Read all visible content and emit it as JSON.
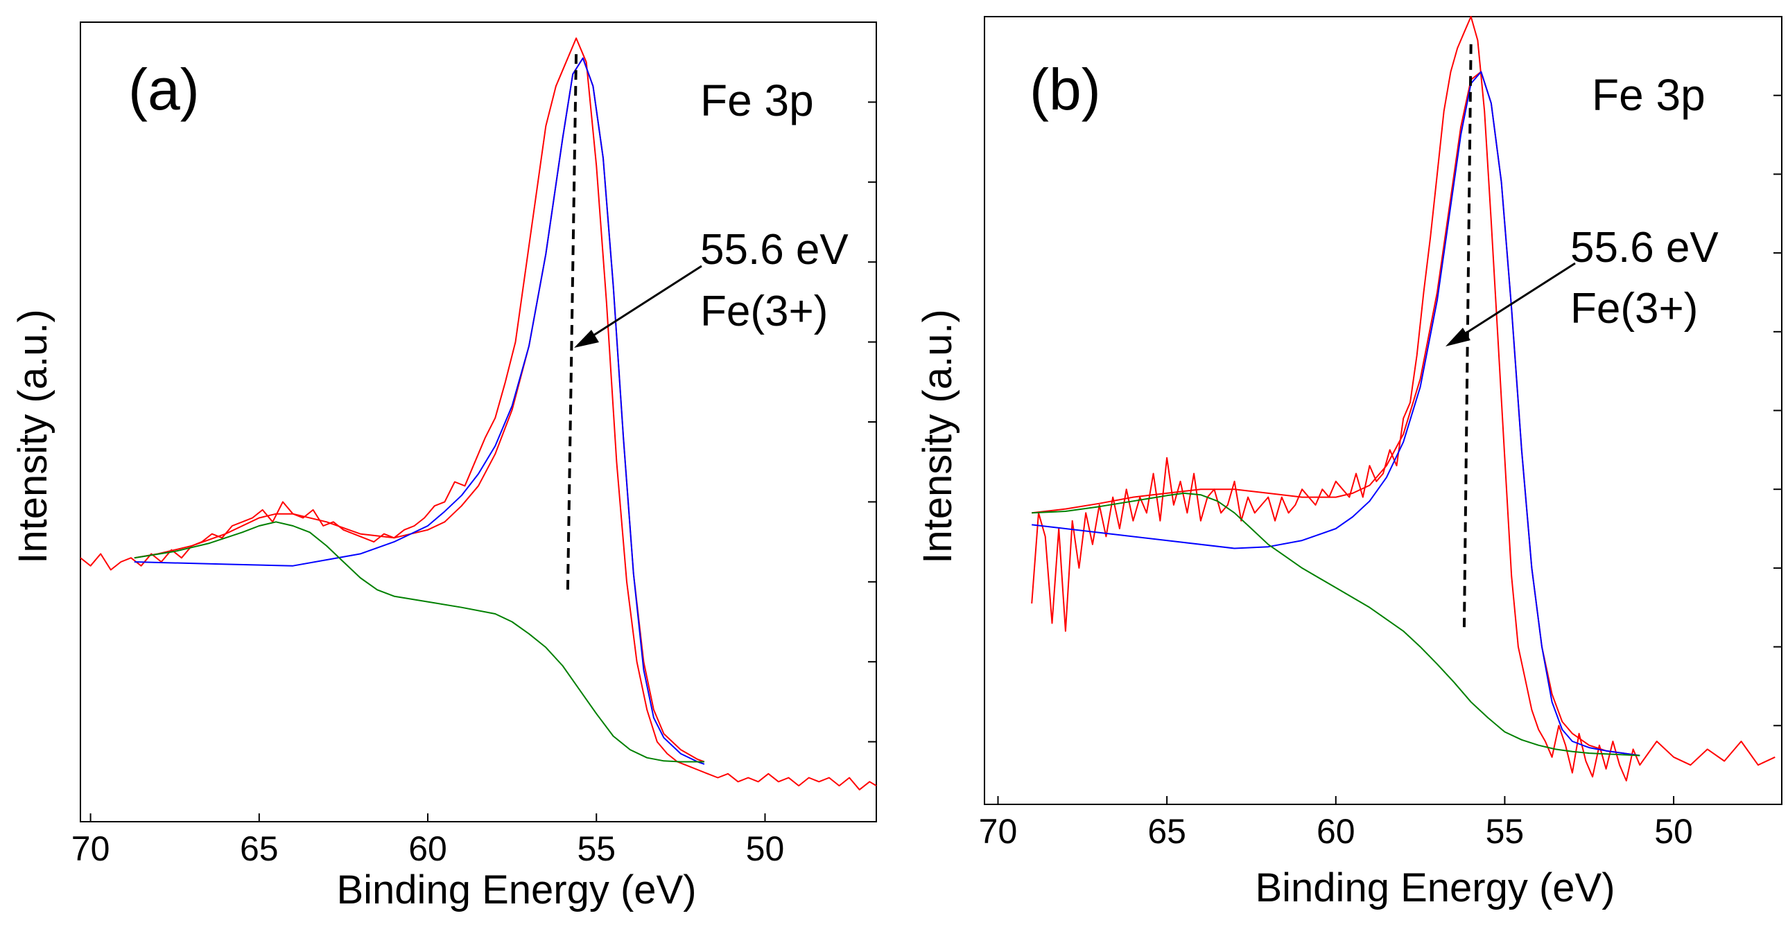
{
  "colors": {
    "raw": "#ff0000",
    "envelope": "#ff0000",
    "fit": "#0000ff",
    "satellite": "#008000",
    "axis": "#000000"
  },
  "chart_data": [
    {
      "type": "line",
      "panel_label": "(a)",
      "title": "Fe 3p",
      "xlabel": "Binding Energy (eV)",
      "ylabel": "Intensity (a.u.)",
      "xlim": [
        70.3,
        46.7
      ],
      "ylim": [
        0,
        10
      ],
      "x_ticks": [
        70,
        65,
        60,
        55,
        50
      ],
      "x_tick_labels": [
        "70",
        "65",
        "60",
        "55",
        "50"
      ],
      "y_ticks": [
        1,
        2,
        3,
        4,
        5,
        6,
        7,
        8,
        9
      ],
      "annotation": {
        "lines": [
          "55.6 eV",
          "Fe(3+)"
        ],
        "peak_position": 55.6
      },
      "peak_marker": {
        "x_top": 55.6,
        "x_bottom": 55.85,
        "y_top": 9.6,
        "y_bottom": 2.9
      },
      "series": [
        {
          "name": "raw spectrum",
          "color_key": "raw",
          "width": 2,
          "x": [
            70.3,
            70.0,
            69.7,
            69.4,
            69.1,
            68.8,
            68.5,
            68.2,
            67.9,
            67.6,
            67.3,
            67.0,
            66.7,
            66.4,
            66.1,
            65.8,
            65.5,
            65.2,
            64.9,
            64.6,
            64.3,
            64.0,
            63.7,
            63.4,
            63.1,
            62.8,
            62.5,
            62.2,
            61.9,
            61.6,
            61.3,
            61.0,
            60.7,
            60.4,
            60.1,
            59.8,
            59.5,
            59.2,
            58.9,
            58.6,
            58.3,
            58.0,
            57.7,
            57.4,
            57.1,
            56.8,
            56.5,
            56.2,
            55.9,
            55.6,
            55.3,
            55.0,
            54.7,
            54.4,
            54.1,
            53.8,
            53.5,
            53.2,
            52.9,
            52.6,
            52.3,
            52.0,
            51.7,
            51.4,
            51.1,
            50.8,
            50.5,
            50.2,
            49.9,
            49.6,
            49.3,
            49.0,
            48.7,
            48.4,
            48.1,
            47.8,
            47.5,
            47.2,
            46.9,
            46.7
          ],
          "y": [
            3.3,
            3.2,
            3.35,
            3.15,
            3.25,
            3.3,
            3.2,
            3.35,
            3.25,
            3.4,
            3.3,
            3.45,
            3.5,
            3.6,
            3.55,
            3.7,
            3.75,
            3.8,
            3.9,
            3.75,
            4.0,
            3.85,
            3.8,
            3.9,
            3.7,
            3.75,
            3.65,
            3.6,
            3.55,
            3.5,
            3.6,
            3.55,
            3.65,
            3.7,
            3.8,
            3.95,
            4.0,
            4.25,
            4.2,
            4.5,
            4.8,
            5.05,
            5.5,
            6.0,
            6.9,
            7.8,
            8.7,
            9.2,
            9.5,
            9.8,
            9.5,
            8.2,
            6.5,
            4.5,
            3.0,
            2.0,
            1.4,
            1.0,
            0.85,
            0.75,
            0.7,
            0.65,
            0.6,
            0.55,
            0.6,
            0.5,
            0.55,
            0.5,
            0.6,
            0.5,
            0.55,
            0.45,
            0.55,
            0.5,
            0.55,
            0.45,
            0.55,
            0.4,
            0.5,
            0.45
          ]
        },
        {
          "name": "fit envelope",
          "color_key": "envelope",
          "width": 2,
          "x": [
            68.7,
            68.0,
            67.0,
            66.0,
            65.0,
            64.5,
            64.0,
            63.0,
            62.0,
            61.0,
            60.0,
            59.5,
            59.0,
            58.5,
            58.0,
            57.5,
            57.0,
            56.5,
            56.0,
            55.7,
            55.4,
            55.1,
            54.8,
            54.5,
            54.2,
            53.9,
            53.6,
            53.3,
            53.0,
            52.5,
            52.0,
            51.8
          ],
          "y": [
            3.3,
            3.35,
            3.45,
            3.6,
            3.8,
            3.85,
            3.85,
            3.75,
            3.6,
            3.55,
            3.65,
            3.75,
            3.95,
            4.2,
            4.6,
            5.15,
            5.95,
            7.1,
            8.55,
            9.35,
            9.55,
            9.2,
            8.3,
            6.7,
            4.8,
            3.1,
            2.0,
            1.4,
            1.1,
            0.9,
            0.78,
            0.75
          ]
        },
        {
          "name": "Fe(3+) fit",
          "color_key": "fit",
          "width": 2,
          "x": [
            68.7,
            66.0,
            64.0,
            62.0,
            61.0,
            60.0,
            59.5,
            59.0,
            58.5,
            58.0,
            57.5,
            57.0,
            56.5,
            56.0,
            55.7,
            55.4,
            55.1,
            54.8,
            54.5,
            54.2,
            53.9,
            53.6,
            53.3,
            53.0,
            52.5,
            52.0,
            51.8
          ],
          "y": [
            3.25,
            3.22,
            3.2,
            3.35,
            3.5,
            3.7,
            3.88,
            4.08,
            4.35,
            4.7,
            5.2,
            5.95,
            7.1,
            8.55,
            9.35,
            9.55,
            9.2,
            8.3,
            6.7,
            4.8,
            3.1,
            1.9,
            1.3,
            1.05,
            0.85,
            0.75,
            0.72
          ]
        },
        {
          "name": "satellite / background",
          "color_key": "satellite",
          "width": 2,
          "x": [
            68.7,
            67.5,
            66.5,
            65.5,
            65.0,
            64.5,
            64.0,
            63.5,
            63.0,
            62.5,
            62.0,
            61.5,
            61.0,
            60.0,
            59.0,
            58.0,
            57.5,
            57.0,
            56.5,
            56.0,
            55.5,
            55.0,
            54.5,
            54.0,
            53.5,
            53.0,
            52.5,
            52.0,
            51.8
          ],
          "y": [
            3.3,
            3.38,
            3.48,
            3.62,
            3.7,
            3.75,
            3.7,
            3.62,
            3.45,
            3.25,
            3.05,
            2.9,
            2.82,
            2.75,
            2.68,
            2.6,
            2.5,
            2.35,
            2.18,
            1.95,
            1.65,
            1.35,
            1.07,
            0.9,
            0.8,
            0.76,
            0.75,
            0.75,
            0.75
          ]
        }
      ]
    },
    {
      "type": "line",
      "panel_label": "(b)",
      "title": "Fe 3p",
      "xlabel": "Binding Energy (eV)",
      "ylabel": "Intensity (a.u.)",
      "xlim": [
        70.4,
        46.8
      ],
      "ylim": [
        0,
        10
      ],
      "x_ticks": [
        70,
        65,
        60,
        55,
        50
      ],
      "x_tick_labels": [
        "70",
        "65",
        "60",
        "55",
        "50"
      ],
      "y_ticks": [
        1,
        2,
        3,
        4,
        5,
        6,
        7,
        8,
        9
      ],
      "annotation": {
        "lines": [
          "55.6 eV",
          "Fe(3+)"
        ],
        "peak_position": 55.6
      },
      "peak_marker": {
        "x_top": 56.0,
        "x_bottom": 56.2,
        "y_top": 9.65,
        "y_bottom": 2.25
      },
      "series": [
        {
          "name": "raw spectrum",
          "color_key": "raw",
          "width": 2,
          "x": [
            69.0,
            68.8,
            68.6,
            68.4,
            68.2,
            68.0,
            67.8,
            67.6,
            67.4,
            67.2,
            67.0,
            66.8,
            66.6,
            66.4,
            66.2,
            66.0,
            65.8,
            65.6,
            65.4,
            65.2,
            65.0,
            64.8,
            64.6,
            64.4,
            64.2,
            64.0,
            63.8,
            63.6,
            63.4,
            63.2,
            63.0,
            62.8,
            62.6,
            62.4,
            62.2,
            62.0,
            61.8,
            61.6,
            61.4,
            61.2,
            61.0,
            60.8,
            60.6,
            60.4,
            60.2,
            60.0,
            59.8,
            59.6,
            59.4,
            59.2,
            59.0,
            58.8,
            58.6,
            58.4,
            58.2,
            58.0,
            57.8,
            57.6,
            57.4,
            57.2,
            57.0,
            56.8,
            56.6,
            56.4,
            56.2,
            56.0,
            55.8,
            55.6,
            55.4,
            55.2,
            55.0,
            54.8,
            54.6,
            54.4,
            54.2,
            54.0,
            53.8,
            53.6,
            53.4,
            53.2,
            53.0,
            52.8,
            52.6,
            52.4,
            52.2,
            52.0,
            51.8,
            51.6,
            51.4,
            51.2,
            51.0,
            50.5,
            50.0,
            49.5,
            49.0,
            48.5,
            48.0,
            47.5,
            47.0
          ],
          "y": [
            2.55,
            3.7,
            3.4,
            2.3,
            3.5,
            2.2,
            3.6,
            3.0,
            3.7,
            3.3,
            3.8,
            3.4,
            3.9,
            3.5,
            4.0,
            3.6,
            3.9,
            3.7,
            4.2,
            3.6,
            4.4,
            3.8,
            4.1,
            3.7,
            4.2,
            3.6,
            3.9,
            4.0,
            3.7,
            3.8,
            4.1,
            3.6,
            3.9,
            3.7,
            3.8,
            3.9,
            3.6,
            3.9,
            3.7,
            3.8,
            4.0,
            3.9,
            3.8,
            4.0,
            3.9,
            4.1,
            4.0,
            3.9,
            4.2,
            3.9,
            4.3,
            4.1,
            4.2,
            4.5,
            4.3,
            4.9,
            5.1,
            5.7,
            6.5,
            7.2,
            8.0,
            8.8,
            9.3,
            9.6,
            9.8,
            10.0,
            9.7,
            8.8,
            7.4,
            5.9,
            4.4,
            2.9,
            2.0,
            1.6,
            1.2,
            0.95,
            0.8,
            0.6,
            1.0,
            0.75,
            0.4,
            0.9,
            0.55,
            0.35,
            0.75,
            0.45,
            0.8,
            0.5,
            0.3,
            0.7,
            0.5,
            0.8,
            0.6,
            0.5,
            0.7,
            0.55,
            0.8,
            0.5,
            0.6
          ]
        },
        {
          "name": "fit envelope",
          "color_key": "envelope",
          "width": 2,
          "x": [
            69.0,
            68.0,
            67.0,
            66.0,
            65.0,
            64.0,
            63.0,
            62.0,
            61.0,
            60.0,
            59.5,
            59.0,
            58.5,
            58.0,
            57.5,
            57.0,
            56.6,
            56.3,
            56.0,
            55.7,
            55.4,
            55.1,
            54.8,
            54.5,
            54.2,
            53.9,
            53.6,
            53.3,
            53.0,
            52.5,
            52.0,
            51.5,
            51.0
          ],
          "y": [
            3.7,
            3.75,
            3.82,
            3.9,
            3.95,
            4.0,
            4.0,
            3.95,
            3.9,
            3.9,
            3.95,
            4.05,
            4.3,
            4.7,
            5.4,
            6.5,
            7.7,
            8.6,
            9.2,
            9.3,
            8.9,
            7.9,
            6.3,
            4.5,
            3.0,
            2.0,
            1.4,
            1.05,
            0.9,
            0.75,
            0.68,
            0.65,
            0.62
          ]
        },
        {
          "name": "Fe(3+) fit",
          "color_key": "fit",
          "width": 2,
          "x": [
            69.0,
            67.0,
            65.0,
            63.0,
            62.0,
            61.0,
            60.0,
            59.5,
            59.0,
            58.5,
            58.0,
            57.5,
            57.0,
            56.6,
            56.3,
            56.0,
            55.7,
            55.4,
            55.1,
            54.8,
            54.5,
            54.2,
            53.9,
            53.6,
            53.3,
            53.0,
            52.5,
            52.0,
            51.5,
            51.0
          ],
          "y": [
            3.55,
            3.45,
            3.35,
            3.25,
            3.27,
            3.35,
            3.5,
            3.65,
            3.85,
            4.15,
            4.6,
            5.3,
            6.4,
            7.6,
            8.5,
            9.15,
            9.3,
            8.9,
            7.9,
            6.3,
            4.5,
            3.0,
            2.0,
            1.3,
            0.95,
            0.8,
            0.72,
            0.68,
            0.65,
            0.62
          ]
        },
        {
          "name": "satellite / background",
          "color_key": "satellite",
          "width": 2,
          "x": [
            69.0,
            68.0,
            67.0,
            66.0,
            65.0,
            64.5,
            64.0,
            63.5,
            63.0,
            62.5,
            62.0,
            61.5,
            61.0,
            60.0,
            59.0,
            58.0,
            57.5,
            57.0,
            56.5,
            56.0,
            55.5,
            55.0,
            54.5,
            54.0,
            53.5,
            53.0,
            52.5,
            52.0,
            51.5,
            51.0
          ],
          "y": [
            3.7,
            3.72,
            3.78,
            3.85,
            3.92,
            3.95,
            3.93,
            3.85,
            3.7,
            3.5,
            3.3,
            3.15,
            3.0,
            2.75,
            2.5,
            2.2,
            2.0,
            1.78,
            1.55,
            1.3,
            1.1,
            0.92,
            0.82,
            0.75,
            0.7,
            0.67,
            0.65,
            0.64,
            0.63,
            0.62
          ]
        }
      ]
    }
  ]
}
